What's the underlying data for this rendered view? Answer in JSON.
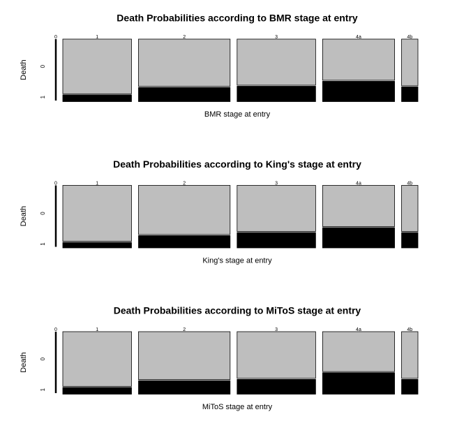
{
  "chart_data": [
    {
      "type": "mosaic",
      "title": "Death Probabilities according to BMR stage at entry",
      "x_label": "BMR stage at entry",
      "y_label": "Death",
      "categories": [
        "0",
        "1",
        "2",
        "3",
        "4a",
        "4b"
      ],
      "widths": [
        0,
        0.21,
        0.28,
        0.24,
        0.22,
        0.05
      ],
      "series": [
        {
          "name": "0",
          "color": "#bebebe",
          "values": [
            null,
            0.89,
            0.77,
            0.75,
            0.67,
            0.76
          ]
        },
        {
          "name": "1",
          "color": "#000000",
          "values": [
            null,
            0.11,
            0.23,
            0.25,
            0.33,
            0.24
          ]
        }
      ]
    },
    {
      "type": "mosaic",
      "title": "Death Probabilities according to King's stage at entry",
      "x_label": "King's stage at entry",
      "y_label": "Death",
      "categories": [
        "0",
        "1",
        "2",
        "3",
        "4a",
        "4b"
      ],
      "widths": [
        0,
        0.21,
        0.28,
        0.24,
        0.22,
        0.05
      ],
      "series": [
        {
          "name": "0",
          "color": "#bebebe",
          "values": [
            null,
            0.91,
            0.8,
            0.75,
            0.67,
            0.75
          ]
        },
        {
          "name": "1",
          "color": "#000000",
          "values": [
            null,
            0.09,
            0.2,
            0.25,
            0.33,
            0.25
          ]
        }
      ]
    },
    {
      "type": "mosaic",
      "title": "Death Probabilities according to MiToS stage at entry",
      "x_label": "MiToS stage at entry",
      "y_label": "Death",
      "categories": [
        "0",
        "1",
        "2",
        "3",
        "4a",
        "4b"
      ],
      "widths": [
        0,
        0.21,
        0.28,
        0.24,
        0.22,
        0.05
      ],
      "series": [
        {
          "name": "0",
          "color": "#bebebe",
          "values": [
            null,
            0.89,
            0.78,
            0.76,
            0.65,
            0.76
          ]
        },
        {
          "name": "1",
          "color": "#000000",
          "values": [
            null,
            0.11,
            0.22,
            0.24,
            0.35,
            0.24
          ]
        }
      ]
    }
  ]
}
